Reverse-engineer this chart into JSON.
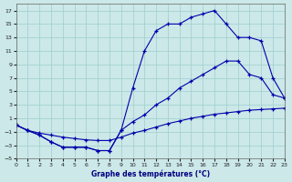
{
  "xlabel": "Graphe des températures (°C)",
  "bg_color": "#cce8e8",
  "grid_color": "#9ecece",
  "line_color": "#0000aa",
  "xlim": [
    0,
    23
  ],
  "ylim": [
    -5,
    18
  ],
  "xticks": [
    0,
    1,
    2,
    3,
    4,
    5,
    6,
    7,
    8,
    9,
    10,
    11,
    12,
    13,
    14,
    15,
    16,
    17,
    18,
    19,
    20,
    21,
    22,
    23
  ],
  "yticks": [
    -5,
    -3,
    -1,
    1,
    3,
    5,
    7,
    9,
    11,
    13,
    15,
    17
  ],
  "line1": {
    "x": [
      0,
      1,
      2,
      3,
      4,
      5,
      6,
      7,
      8,
      9,
      10,
      11,
      12,
      13,
      14,
      15,
      16,
      17,
      18,
      19,
      20,
      21,
      22,
      23
    ],
    "y": [
      0,
      -0.8,
      -1.2,
      -1.5,
      -1.8,
      -2.0,
      -2.2,
      -2.3,
      -2.3,
      -1.8,
      -1.2,
      -0.8,
      -0.3,
      0.2,
      0.6,
      1.0,
      1.3,
      1.6,
      1.8,
      2.0,
      2.2,
      2.3,
      2.4,
      2.5
    ]
  },
  "line2": {
    "x": [
      0,
      1,
      2,
      3,
      4,
      5,
      6,
      7,
      8,
      9,
      10,
      11,
      12,
      13,
      14,
      15,
      16,
      17,
      18,
      19,
      20,
      21,
      22,
      23
    ],
    "y": [
      0,
      -0.8,
      -1.5,
      -2.5,
      -3.3,
      -3.3,
      -3.3,
      -3.8,
      -3.8,
      -0.8,
      0.5,
      1.5,
      3.0,
      4.0,
      5.5,
      6.5,
      7.5,
      8.5,
      9.5,
      9.5,
      7.5,
      7.0,
      4.5,
      4.0
    ]
  },
  "line3": {
    "x": [
      0,
      1,
      2,
      3,
      4,
      5,
      6,
      7,
      8,
      9,
      10,
      11,
      12,
      13,
      14,
      15,
      16,
      17,
      18,
      19,
      20,
      21,
      22,
      23
    ],
    "y": [
      0,
      -0.8,
      -1.5,
      -2.5,
      -3.3,
      -3.3,
      -3.3,
      -3.8,
      -3.8,
      -0.8,
      5.5,
      11.0,
      14.0,
      15.0,
      15.0,
      16.0,
      16.5,
      17.0,
      15.0,
      13.0,
      13.0,
      12.5,
      7.0,
      4.0
    ]
  }
}
